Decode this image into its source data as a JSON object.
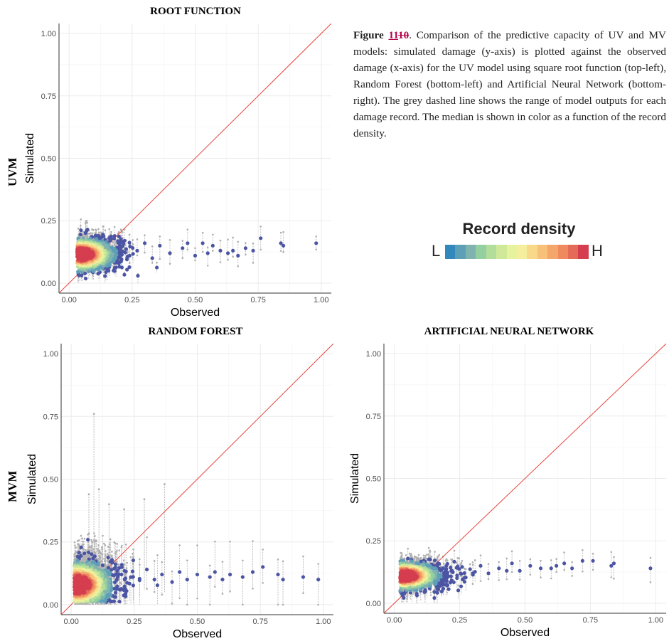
{
  "caption": {
    "lead": "Figure ",
    "number": "11",
    "struck_number": "10",
    "text": ". Comparison of the predictive capacity of UV and MV models: simulated damage (y-axis) is plotted against the observed damage (x-axis) for the UV model using square root function (top-left), Random Forest (bottom-left) and Artificial Neural Network (bottom-right). The grey dashed line shows the range of model outputs for each damage record. The median is shown in color as a function of the record density."
  },
  "row_labels": {
    "top": "UVM",
    "bottom": "MVM"
  },
  "legend": {
    "title": "Record density",
    "low_label": "L",
    "high_label": "H",
    "colors": [
      "#3288bd",
      "#5e9fb8",
      "#7fb3b0",
      "#94cfa0",
      "#b3dd9a",
      "#cfe89a",
      "#e6f29d",
      "#f5ee9d",
      "#f8d98a",
      "#f7c17a",
      "#f4a66b",
      "#ee8a5e",
      "#e46b57",
      "#d53e4f"
    ]
  },
  "colors": {
    "median_low": "#4b55a3",
    "range_grey": "#b0b0b0",
    "identity_line": "#e8453c",
    "grid": "#ebebeb"
  },
  "chart_data": [
    {
      "type": "scatter",
      "title": "ROOT FUNCTION",
      "xlabel": "Observed",
      "ylabel": "Simulated",
      "xlim": [
        0,
        1
      ],
      "ylim": [
        0,
        1
      ],
      "xticks": [
        "0.00",
        "0.25",
        "0.50",
        "0.75",
        "1.00"
      ],
      "yticks": [
        "0.00",
        "0.25",
        "0.50",
        "0.75",
        "1.00"
      ],
      "grid": true,
      "identity_line": true,
      "cluster": {
        "x_center": 0.06,
        "y_center": 0.115,
        "x_spread": 0.07,
        "y_spread": 0.035
      },
      "outlier_medians": [
        [
          0.22,
          0.17
        ],
        [
          0.24,
          0.11
        ],
        [
          0.27,
          0.13
        ],
        [
          0.3,
          0.16
        ],
        [
          0.33,
          0.1
        ],
        [
          0.36,
          0.15
        ],
        [
          0.4,
          0.12
        ],
        [
          0.45,
          0.14
        ],
        [
          0.47,
          0.16
        ],
        [
          0.5,
          0.11
        ],
        [
          0.53,
          0.16
        ],
        [
          0.55,
          0.12
        ],
        [
          0.57,
          0.15
        ],
        [
          0.6,
          0.13
        ],
        [
          0.63,
          0.12
        ],
        [
          0.65,
          0.13
        ],
        [
          0.67,
          0.11
        ],
        [
          0.7,
          0.14
        ],
        [
          0.73,
          0.13
        ],
        [
          0.76,
          0.18
        ],
        [
          0.84,
          0.16
        ],
        [
          0.85,
          0.15
        ],
        [
          0.98,
          0.16
        ]
      ],
      "range_extent": [
        0.04,
        0.06
      ]
    },
    {
      "type": "scatter",
      "title": "RANDOM FOREST",
      "xlabel": "Observed",
      "ylabel": "Simulated",
      "xlim": [
        0,
        1
      ],
      "ylim": [
        0,
        1
      ],
      "xticks": [
        "0.00",
        "0.25",
        "0.50",
        "0.75",
        "1.00"
      ],
      "yticks": [
        "0.00",
        "0.25",
        "0.50",
        "0.75",
        "1.00"
      ],
      "grid": true,
      "identity_line": true,
      "cluster": {
        "x_center": 0.04,
        "y_center": 0.08,
        "x_spread": 0.07,
        "y_spread": 0.05
      },
      "outlier_medians": [
        [
          0.3,
          0.14
        ],
        [
          0.33,
          0.1
        ],
        [
          0.36,
          0.12
        ],
        [
          0.4,
          0.09
        ],
        [
          0.43,
          0.13
        ],
        [
          0.46,
          0.1
        ],
        [
          0.5,
          0.12
        ],
        [
          0.55,
          0.11
        ],
        [
          0.57,
          0.13
        ],
        [
          0.6,
          0.1
        ],
        [
          0.63,
          0.12
        ],
        [
          0.68,
          0.11
        ],
        [
          0.72,
          0.13
        ],
        [
          0.76,
          0.15
        ],
        [
          0.82,
          0.12
        ],
        [
          0.84,
          0.1
        ],
        [
          0.92,
          0.11
        ],
        [
          0.98,
          0.1
        ]
      ],
      "range_extent": [
        0.1,
        0.15
      ],
      "tall_ranges": [
        [
          0.09,
          0.05,
          0.76
        ],
        [
          0.07,
          0.06,
          0.44
        ],
        [
          0.11,
          0.05,
          0.46
        ],
        [
          0.15,
          0.06,
          0.4
        ],
        [
          0.21,
          0.05,
          0.38
        ],
        [
          0.37,
          0.05,
          0.48
        ],
        [
          0.29,
          0.06,
          0.42
        ]
      ]
    },
    {
      "type": "scatter",
      "title": "ARTIFICIAL NEURAL NETWORK",
      "xlabel": "Observed",
      "ylabel": "Simulated",
      "xlim": [
        0,
        1
      ],
      "ylim": [
        0,
        1
      ],
      "xticks": [
        "0.00",
        "0.25",
        "0.50",
        "0.75",
        "1.00"
      ],
      "yticks": [
        "0.00",
        "0.25",
        "0.50",
        "0.75",
        "1.00"
      ],
      "grid": true,
      "identity_line": true,
      "cluster": {
        "x_center": 0.05,
        "y_center": 0.11,
        "x_spread": 0.07,
        "y_spread": 0.03
      },
      "outlier_medians": [
        [
          0.3,
          0.12
        ],
        [
          0.33,
          0.15
        ],
        [
          0.36,
          0.12
        ],
        [
          0.4,
          0.14
        ],
        [
          0.43,
          0.13
        ],
        [
          0.45,
          0.16
        ],
        [
          0.48,
          0.13
        ],
        [
          0.52,
          0.15
        ],
        [
          0.56,
          0.14
        ],
        [
          0.6,
          0.14
        ],
        [
          0.62,
          0.15
        ],
        [
          0.65,
          0.16
        ],
        [
          0.68,
          0.14
        ],
        [
          0.72,
          0.17
        ],
        [
          0.76,
          0.17
        ],
        [
          0.83,
          0.15
        ],
        [
          0.84,
          0.16
        ],
        [
          0.98,
          0.14
        ]
      ],
      "range_extent": [
        0.04,
        0.07
      ]
    }
  ]
}
